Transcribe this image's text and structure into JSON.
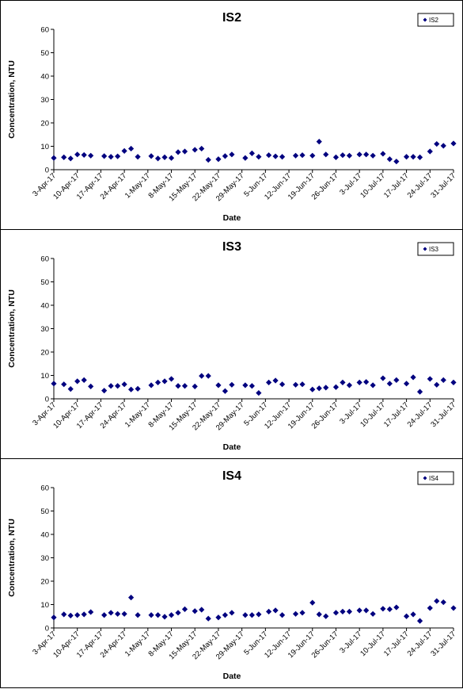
{
  "chart_data": [
    {
      "type": "scatter",
      "title": "IS2",
      "xlabel": "Date",
      "ylabel": "Concentration, NTU",
      "ylim": [
        0,
        60
      ],
      "yticks": [
        0,
        10,
        20,
        30,
        40,
        50,
        60
      ],
      "xlim": [
        "2017-04-03",
        "2017-07-31"
      ],
      "xtick_labels": [
        "3-Apr-17",
        "10-Apr-17",
        "17-Apr-17",
        "24-Apr-17",
        "1-May-17",
        "8-May-17",
        "15-May-17",
        "22-May-17",
        "29-May-17",
        "5-Jun-17",
        "12-Jun-17",
        "19-Jun-17",
        "26-Jun-17",
        "3-Jul-17",
        "10-Jul-17",
        "17-Jul-17",
        "24-Jul-17",
        "31-Jul-17"
      ],
      "legend_position": "top-right",
      "grid": false,
      "color": "#00007f",
      "series": [
        {
          "name": "IS2",
          "x": [
            "2017-04-03",
            "2017-04-06",
            "2017-04-08",
            "2017-04-10",
            "2017-04-12",
            "2017-04-14",
            "2017-04-18",
            "2017-04-20",
            "2017-04-22",
            "2017-04-24",
            "2017-04-26",
            "2017-04-28",
            "2017-05-02",
            "2017-05-04",
            "2017-05-06",
            "2017-05-08",
            "2017-05-10",
            "2017-05-12",
            "2017-05-15",
            "2017-05-17",
            "2017-05-19",
            "2017-05-22",
            "2017-05-24",
            "2017-05-26",
            "2017-05-30",
            "2017-06-01",
            "2017-06-03",
            "2017-06-06",
            "2017-06-08",
            "2017-06-10",
            "2017-06-14",
            "2017-06-16",
            "2017-06-19",
            "2017-06-21",
            "2017-06-23",
            "2017-06-26",
            "2017-06-28",
            "2017-06-30",
            "2017-07-03",
            "2017-07-05",
            "2017-07-07",
            "2017-07-10",
            "2017-07-12",
            "2017-07-14",
            "2017-07-17",
            "2017-07-19",
            "2017-07-21",
            "2017-07-24",
            "2017-07-26",
            "2017-07-28",
            "2017-07-31"
          ],
          "y": [
            5,
            5.3,
            4.8,
            6.5,
            6.3,
            6,
            5.8,
            5.5,
            5.7,
            8,
            9,
            5.5,
            5.8,
            4.8,
            5.3,
            5,
            7.5,
            7.8,
            8.5,
            9,
            4.2,
            4.5,
            5.8,
            6.5,
            5,
            7,
            5.5,
            6.2,
            5.7,
            5.5,
            6,
            6.2,
            6,
            12,
            6.5,
            5.3,
            6.2,
            6,
            6.5,
            6.5,
            6,
            6.8,
            4.5,
            3.5,
            5.5,
            5.5,
            5.3,
            7.8,
            11,
            10.2,
            11.2
          ]
        }
      ]
    },
    {
      "type": "scatter",
      "title": "IS3",
      "xlabel": "Date",
      "ylabel": "Concentration, NTU",
      "ylim": [
        0,
        60
      ],
      "yticks": [
        0,
        10,
        20,
        30,
        40,
        50,
        60
      ],
      "xlim": [
        "2017-04-03",
        "2017-07-31"
      ],
      "xtick_labels": [
        "3-Apr-17",
        "10-Apr-17",
        "17-Apr-17",
        "24-Apr-17",
        "1-May-17",
        "8-May-17",
        "15-May-17",
        "22-May-17",
        "29-May-17",
        "5-Jun-17",
        "12-Jun-17",
        "19-Jun-17",
        "26-Jun-17",
        "3-Jul-17",
        "10-Jul-17",
        "17-Jul-17",
        "24-Jul-17",
        "31-Jul-17"
      ],
      "legend_position": "top-right",
      "grid": false,
      "color": "#00007f",
      "series": [
        {
          "name": "IS3",
          "x": [
            "2017-04-03",
            "2017-04-06",
            "2017-04-08",
            "2017-04-10",
            "2017-04-12",
            "2017-04-14",
            "2017-04-18",
            "2017-04-20",
            "2017-04-22",
            "2017-04-24",
            "2017-04-26",
            "2017-04-28",
            "2017-05-02",
            "2017-05-04",
            "2017-05-06",
            "2017-05-08",
            "2017-05-10",
            "2017-05-12",
            "2017-05-15",
            "2017-05-17",
            "2017-05-19",
            "2017-05-22",
            "2017-05-24",
            "2017-05-26",
            "2017-05-30",
            "2017-06-01",
            "2017-06-03",
            "2017-06-06",
            "2017-06-08",
            "2017-06-10",
            "2017-06-14",
            "2017-06-16",
            "2017-06-19",
            "2017-06-21",
            "2017-06-23",
            "2017-06-26",
            "2017-06-28",
            "2017-06-30",
            "2017-07-03",
            "2017-07-05",
            "2017-07-07",
            "2017-07-10",
            "2017-07-12",
            "2017-07-14",
            "2017-07-17",
            "2017-07-19",
            "2017-07-21",
            "2017-07-24",
            "2017-07-26",
            "2017-07-28",
            "2017-07-31"
          ],
          "y": [
            6.5,
            6.2,
            4.2,
            7.5,
            8,
            5.3,
            3.5,
            5.5,
            5.5,
            6.2,
            4,
            4.3,
            5.8,
            7,
            7.5,
            8.5,
            5.5,
            5.5,
            5.3,
            9.8,
            9.8,
            5.8,
            3.3,
            6,
            5.8,
            5.5,
            2.5,
            7,
            7.8,
            6.2,
            6,
            6.2,
            4,
            4.5,
            4.8,
            5,
            7,
            5.8,
            7,
            7.2,
            5.8,
            8.8,
            6.5,
            8,
            6.5,
            9.2,
            3,
            8.5,
            6,
            8,
            7
          ]
        }
      ]
    },
    {
      "type": "scatter",
      "title": "IS4",
      "xlabel": "Date",
      "ylabel": "Concentration, NTU",
      "ylim": [
        0,
        60
      ],
      "yticks": [
        0,
        10,
        20,
        30,
        40,
        50,
        60
      ],
      "xlim": [
        "2017-04-03",
        "2017-07-31"
      ],
      "xtick_labels": [
        "3-Apr-17",
        "10-Apr-17",
        "17-Apr-17",
        "24-Apr-17",
        "1-May-17",
        "8-May-17",
        "15-May-17",
        "22-May-17",
        "29-May-17",
        "5-Jun-17",
        "12-Jun-17",
        "19-Jun-17",
        "26-Jun-17",
        "3-Jul-17",
        "10-Jul-17",
        "17-Jul-17",
        "24-Jul-17",
        "31-Jul-17"
      ],
      "legend_position": "top-right",
      "grid": false,
      "color": "#00007f",
      "series": [
        {
          "name": "IS4",
          "x": [
            "2017-04-03",
            "2017-04-06",
            "2017-04-08",
            "2017-04-10",
            "2017-04-12",
            "2017-04-14",
            "2017-04-18",
            "2017-04-20",
            "2017-04-22",
            "2017-04-24",
            "2017-04-26",
            "2017-04-28",
            "2017-05-02",
            "2017-05-04",
            "2017-05-06",
            "2017-05-08",
            "2017-05-10",
            "2017-05-12",
            "2017-05-15",
            "2017-05-17",
            "2017-05-19",
            "2017-05-22",
            "2017-05-24",
            "2017-05-26",
            "2017-05-30",
            "2017-06-01",
            "2017-06-03",
            "2017-06-06",
            "2017-06-08",
            "2017-06-10",
            "2017-06-14",
            "2017-06-16",
            "2017-06-19",
            "2017-06-21",
            "2017-06-23",
            "2017-06-26",
            "2017-06-28",
            "2017-06-30",
            "2017-07-03",
            "2017-07-05",
            "2017-07-07",
            "2017-07-10",
            "2017-07-12",
            "2017-07-14",
            "2017-07-17",
            "2017-07-19",
            "2017-07-21",
            "2017-07-24",
            "2017-07-26",
            "2017-07-28",
            "2017-07-31"
          ],
          "y": [
            4.5,
            5.8,
            5.3,
            5.5,
            5.8,
            6.8,
            5.5,
            6.5,
            6,
            6,
            13,
            5.5,
            5.5,
            5.5,
            4.8,
            5.5,
            6.5,
            8,
            7.2,
            7.8,
            4,
            4.5,
            5.5,
            6.5,
            5.5,
            5.5,
            5.8,
            7,
            7.5,
            5.5,
            6,
            6.5,
            10.8,
            5.8,
            5,
            6.5,
            7,
            7,
            7.5,
            7.5,
            6,
            8.2,
            8,
            8.8,
            5,
            5.8,
            3,
            8.5,
            11.5,
            11,
            8.5
          ]
        }
      ]
    }
  ]
}
